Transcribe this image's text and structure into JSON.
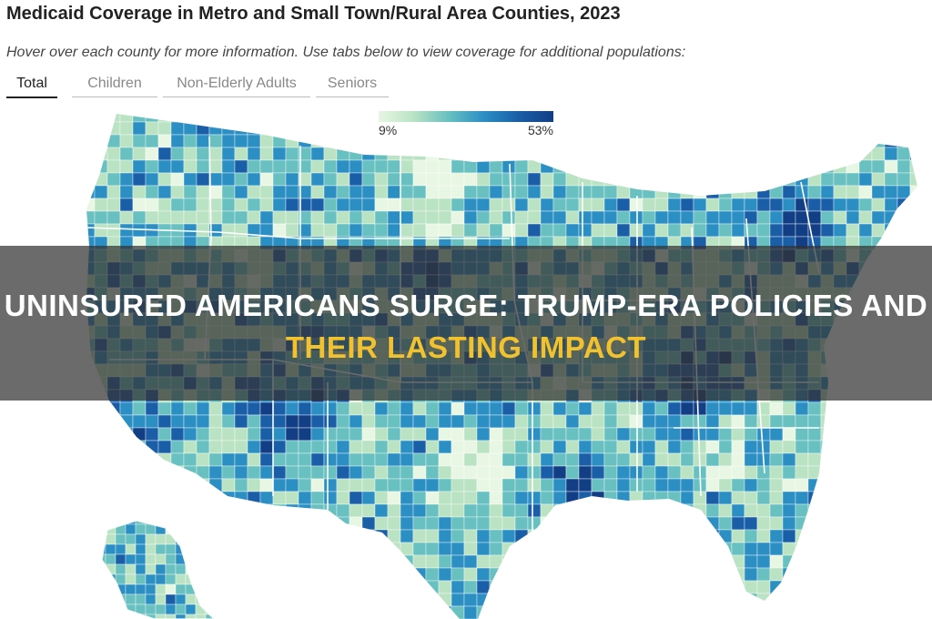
{
  "header": {
    "title": "Medicaid Coverage in Metro and Small Town/Rural Area Counties, 2023",
    "subtitle": "Hover over each county for more information. Use tabs below to view coverage for additional populations:"
  },
  "tabs": [
    {
      "label": "Total",
      "active": true
    },
    {
      "label": "Children",
      "active": false
    },
    {
      "label": "Non-Elderly Adults",
      "active": false
    },
    {
      "label": "Seniors",
      "active": false
    }
  ],
  "legend": {
    "min_label": "9%",
    "max_label": "53%",
    "colors": [
      "#e8f6e4",
      "#b9e3c3",
      "#68c0c0",
      "#2c8fc4",
      "#1a5ea8",
      "#123e86"
    ]
  },
  "map": {
    "land_color": "#8fcfc0",
    "border_color": "#ffffff"
  },
  "banner": {
    "line1": "UNINSURED AMERICANS SURGE: TRUMP-ERA POLICIES AND",
    "line2": "THEIR LASTING IMPACT",
    "line1_color": "#ffffff",
    "line2_color": "#f2c12e"
  }
}
